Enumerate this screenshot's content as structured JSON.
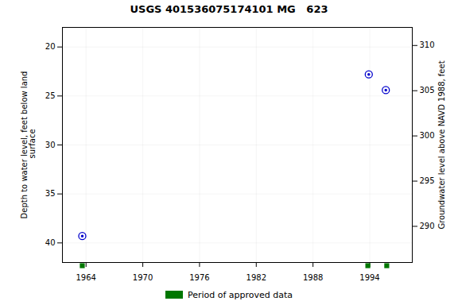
{
  "chart_data": {
    "type": "scatter",
    "title": "USGS 401536075174101 MG   623",
    "ylabel": "Depth to water level, feet below land\n surface",
    "y2label": "Groundwater level above NAVD 1988, feet",
    "x": [
      1963.6,
      1993.9,
      1995.7
    ],
    "values": [
      39.3,
      22.8,
      24.4
    ],
    "color": "#0000cc",
    "marker": "circle",
    "xlim": [
      1961.5,
      1998.5
    ],
    "xticks": [
      1964,
      1970,
      1976,
      1982,
      1988,
      1994
    ],
    "ylim": [
      42,
      18
    ],
    "yticks": [
      20,
      25,
      30,
      35,
      40
    ],
    "y2lim": [
      286,
      312
    ],
    "y2ticks": [
      290,
      295,
      300,
      305,
      310
    ],
    "grid": true,
    "legend": "bottom",
    "period_bars": {
      "name": "Period of approved data",
      "x": [
        1963.6,
        1993.8,
        1995.8
      ],
      "color": "#007700"
    }
  }
}
